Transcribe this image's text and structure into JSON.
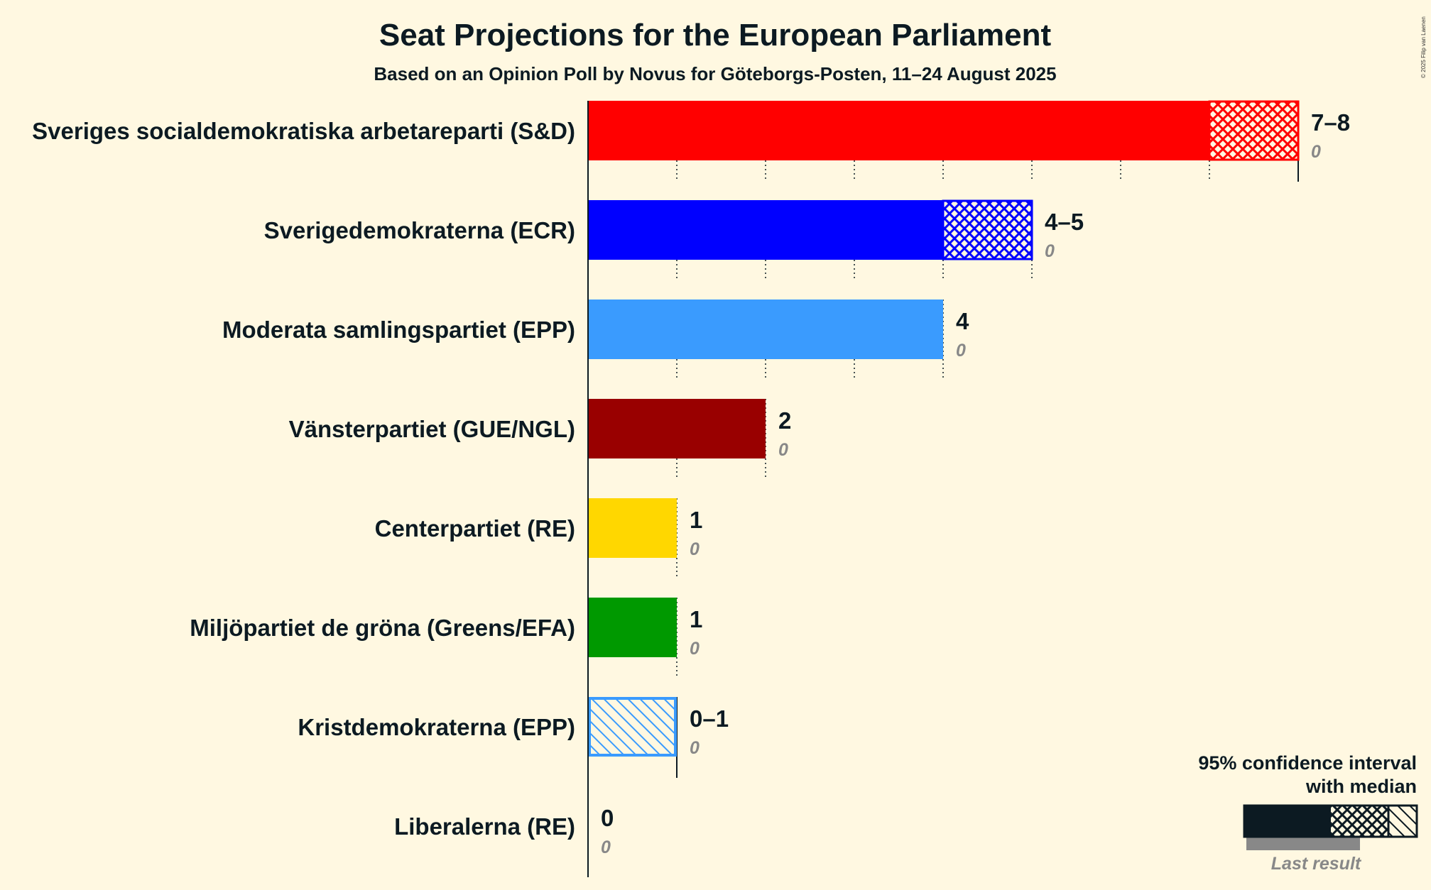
{
  "chart_data": {
    "type": "bar",
    "orientation": "horizontal",
    "title": "Seat Projections for the European Parliament",
    "subtitle": "Based on an Opinion Poll by Novus for Göteborgs-Posten, 11–24 August 2025",
    "copyright": "© 2025 Filip van Laenen",
    "xlim": [
      0,
      8
    ],
    "grid": "dotted vertical lines at each seat",
    "parties": [
      {
        "name": "Sveriges socialdemokratiska arbetareparti (S&D)",
        "color": "#ff0000",
        "low": 7,
        "median": 7,
        "high": 8,
        "range_label": "7–8",
        "last_result": 0,
        "last_label": "0"
      },
      {
        "name": "Sverigedemokraterna (ECR)",
        "color": "#0000ff",
        "low": 4,
        "median": 5,
        "high": 5,
        "range_label": "4–5",
        "last_result": 0,
        "last_label": "0"
      },
      {
        "name": "Moderata samlingspartiet (EPP)",
        "color": "#3a9bfe",
        "low": 4,
        "median": 4,
        "high": 4,
        "range_label": "4",
        "last_result": 0,
        "last_label": "0"
      },
      {
        "name": "Vänsterpartiet (GUE/NGL)",
        "color": "#990000",
        "low": 2,
        "median": 2,
        "high": 2,
        "range_label": "2",
        "last_result": 0,
        "last_label": "0"
      },
      {
        "name": "Centerpartiet (RE)",
        "color": "#ffd700",
        "low": 1,
        "median": 1,
        "high": 1,
        "range_label": "1",
        "last_result": 0,
        "last_label": "0"
      },
      {
        "name": "Miljöpartiet de gröna (Greens/EFA)",
        "color": "#009900",
        "low": 1,
        "median": 1,
        "high": 1,
        "range_label": "1",
        "last_result": 0,
        "last_label": "0"
      },
      {
        "name": "Kristdemokraterna (EPP)",
        "color": "#3a9bfe",
        "low": 0,
        "median": 0,
        "high": 1,
        "range_label": "0–1",
        "last_result": 0,
        "last_label": "0"
      },
      {
        "name": "Liberalerna (RE)",
        "color": "#6ab2e7",
        "low": 0,
        "median": 0,
        "high": 0,
        "range_label": "0",
        "last_result": 0,
        "last_label": "0"
      }
    ],
    "legend": {
      "line1": "95% confidence interval",
      "line2": "with median",
      "last_result": "Last result",
      "placement": "bottom-right"
    }
  }
}
